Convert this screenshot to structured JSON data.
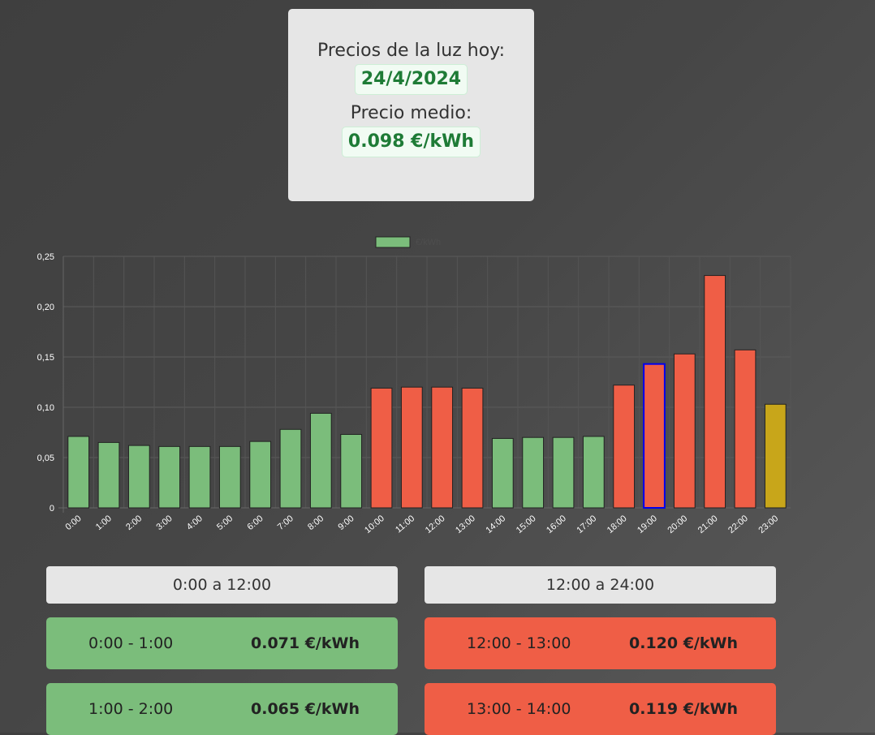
{
  "header": {
    "title_label": "Precios de la luz hoy:",
    "date": "24/4/2024",
    "avg_label": "Precio medio:",
    "avg_value": "0.098 €/kWh"
  },
  "colors": {
    "low": "#7bbd7b",
    "high": "#ef5e46",
    "current_hour": "#ef5e46",
    "current_hour_border": "#0000ee",
    "last": "#c8a61a"
  },
  "chart_data": {
    "type": "bar",
    "legend": {
      "label": "€/kWh",
      "position": "top"
    },
    "categories": [
      "0:00",
      "1:00",
      "2:00",
      "3:00",
      "4:00",
      "5:00",
      "6:00",
      "7:00",
      "8:00",
      "9:00",
      "10:00",
      "11:00",
      "12:00",
      "13:00",
      "14:00",
      "15:00",
      "16:00",
      "17:00",
      "18:00",
      "19:00",
      "20:00",
      "21:00",
      "22:00",
      "23:00"
    ],
    "series": [
      {
        "name": "€/kWh",
        "values": [
          0.071,
          0.065,
          0.062,
          0.061,
          0.061,
          0.061,
          0.066,
          0.078,
          0.094,
          0.073,
          0.119,
          0.12,
          0.12,
          0.119,
          0.069,
          0.07,
          0.07,
          0.071,
          0.122,
          0.143,
          0.153,
          0.231,
          0.157,
          0.103
        ],
        "bar_colors": [
          "low",
          "low",
          "low",
          "low",
          "low",
          "low",
          "low",
          "low",
          "low",
          "low",
          "high",
          "high",
          "high",
          "high",
          "low",
          "low",
          "low",
          "low",
          "high",
          "current_hour",
          "high",
          "high",
          "high",
          "last"
        ]
      }
    ],
    "ylim": [
      0,
      0.25
    ],
    "yticks": [
      0,
      0.05,
      0.1,
      0.15,
      0.2,
      0.25
    ],
    "ytick_labels": [
      "0",
      "0,05",
      "0,10",
      "0,15",
      "0,20",
      "0,25"
    ],
    "grid": true
  },
  "columns": {
    "left_header": "0:00 a 12:00",
    "right_header": "12:00 a 24:00",
    "left_rows": [
      {
        "range": "0:00 - 1:00",
        "price": "0.071 €/kWh",
        "level": "low"
      },
      {
        "range": "1:00 - 2:00",
        "price": "0.065 €/kWh",
        "level": "low"
      }
    ],
    "right_rows": [
      {
        "range": "12:00 - 13:00",
        "price": "0.120 €/kWh",
        "level": "high"
      },
      {
        "range": "13:00 - 14:00",
        "price": "0.119 €/kWh",
        "level": "high"
      }
    ]
  }
}
